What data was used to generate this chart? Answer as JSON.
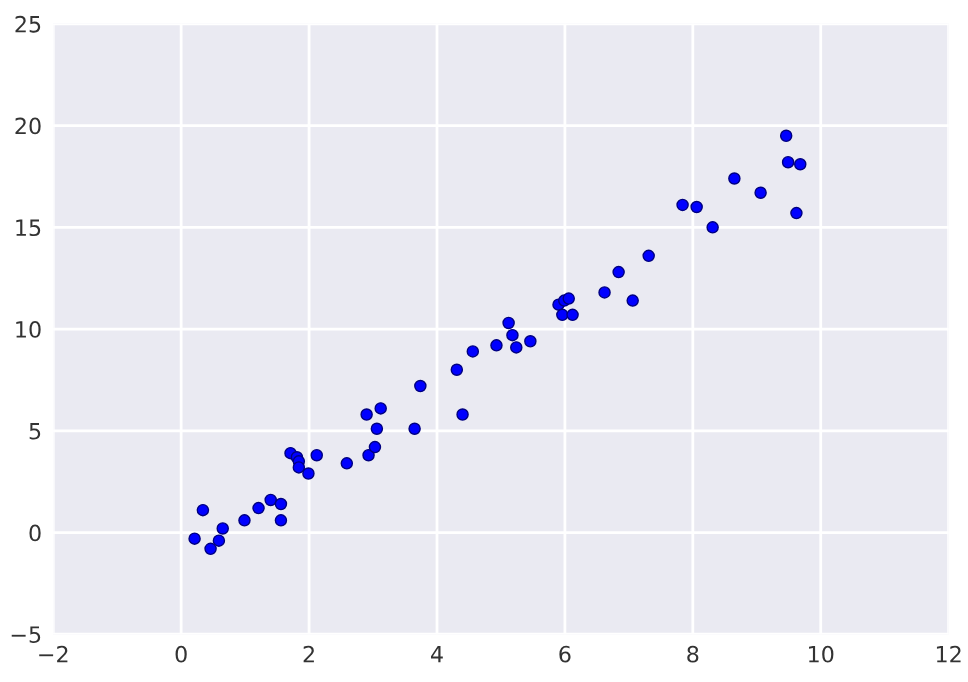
{
  "chart_data": {
    "type": "scatter",
    "marker": "circle",
    "grid": true,
    "xlim": [
      -2,
      12
    ],
    "xticks": [
      -2,
      0,
      2,
      4,
      6,
      8,
      10,
      12
    ],
    "ylim": [
      -5,
      25
    ],
    "yticks": [
      -5,
      0,
      5,
      10,
      15,
      20,
      25
    ],
    "series": [
      {
        "color": "#0000ff",
        "x": [
          0.21,
          0.34,
          0.46,
          0.59,
          0.65,
          0.99,
          1.21,
          1.4,
          1.56,
          1.56,
          1.71,
          1.81,
          1.84,
          1.84,
          1.99,
          2.12,
          2.59,
          2.93,
          3.03,
          3.06,
          2.9,
          3.12,
          3.65,
          3.74,
          4.4,
          4.31,
          4.56,
          4.93,
          5.12,
          5.18,
          5.24,
          5.46,
          5.9,
          5.96,
          5.99,
          6.06,
          6.12,
          6.62,
          6.84,
          7.06,
          7.31,
          7.84,
          8.06,
          8.31,
          8.65,
          9.06,
          9.46,
          9.49,
          9.68,
          9.62
        ],
        "values": [
          -0.3,
          1.1,
          -0.8,
          -0.4,
          0.2,
          0.6,
          1.2,
          1.6,
          1.4,
          0.6,
          3.9,
          3.7,
          3.5,
          3.2,
          2.9,
          3.8,
          3.4,
          3.8,
          4.2,
          5.1,
          5.8,
          6.1,
          5.1,
          7.2,
          5.8,
          8.0,
          8.9,
          9.2,
          10.3,
          9.7,
          9.1,
          9.4,
          11.2,
          10.7,
          11.4,
          11.5,
          10.7,
          11.8,
          12.8,
          11.4,
          13.6,
          16.1,
          16.0,
          15.0,
          17.4,
          16.7,
          19.5,
          18.2,
          18.1,
          15.7
        ]
      }
    ]
  }
}
